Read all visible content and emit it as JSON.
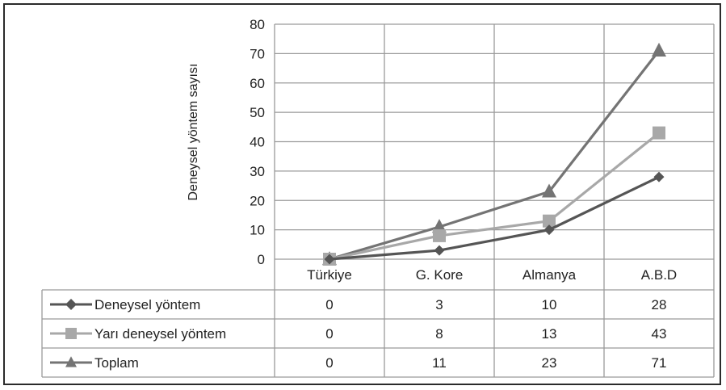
{
  "chart_data": {
    "type": "line",
    "title": "",
    "xlabel": "",
    "ylabel": "Deneysel yöntem sayısı",
    "ylim": [
      0,
      80
    ],
    "yticks": [
      0,
      10,
      20,
      30,
      40,
      50,
      60,
      70,
      80
    ],
    "grid": true,
    "legend": "data-table",
    "categories": [
      "Türkiye",
      "G. Kore",
      "Almanya",
      "A.B.D"
    ],
    "series": [
      {
        "name": "Deneysel yöntem",
        "marker": "diamond",
        "color": "#555555",
        "values": [
          0,
          3,
          10,
          28
        ]
      },
      {
        "name": "Yarı deneysel yöntem",
        "marker": "square",
        "color": "#a8a8a8",
        "values": [
          0,
          8,
          13,
          43
        ]
      },
      {
        "name": "Toplam",
        "marker": "triangle",
        "color": "#747474",
        "values": [
          0,
          11,
          23,
          71
        ]
      }
    ]
  }
}
